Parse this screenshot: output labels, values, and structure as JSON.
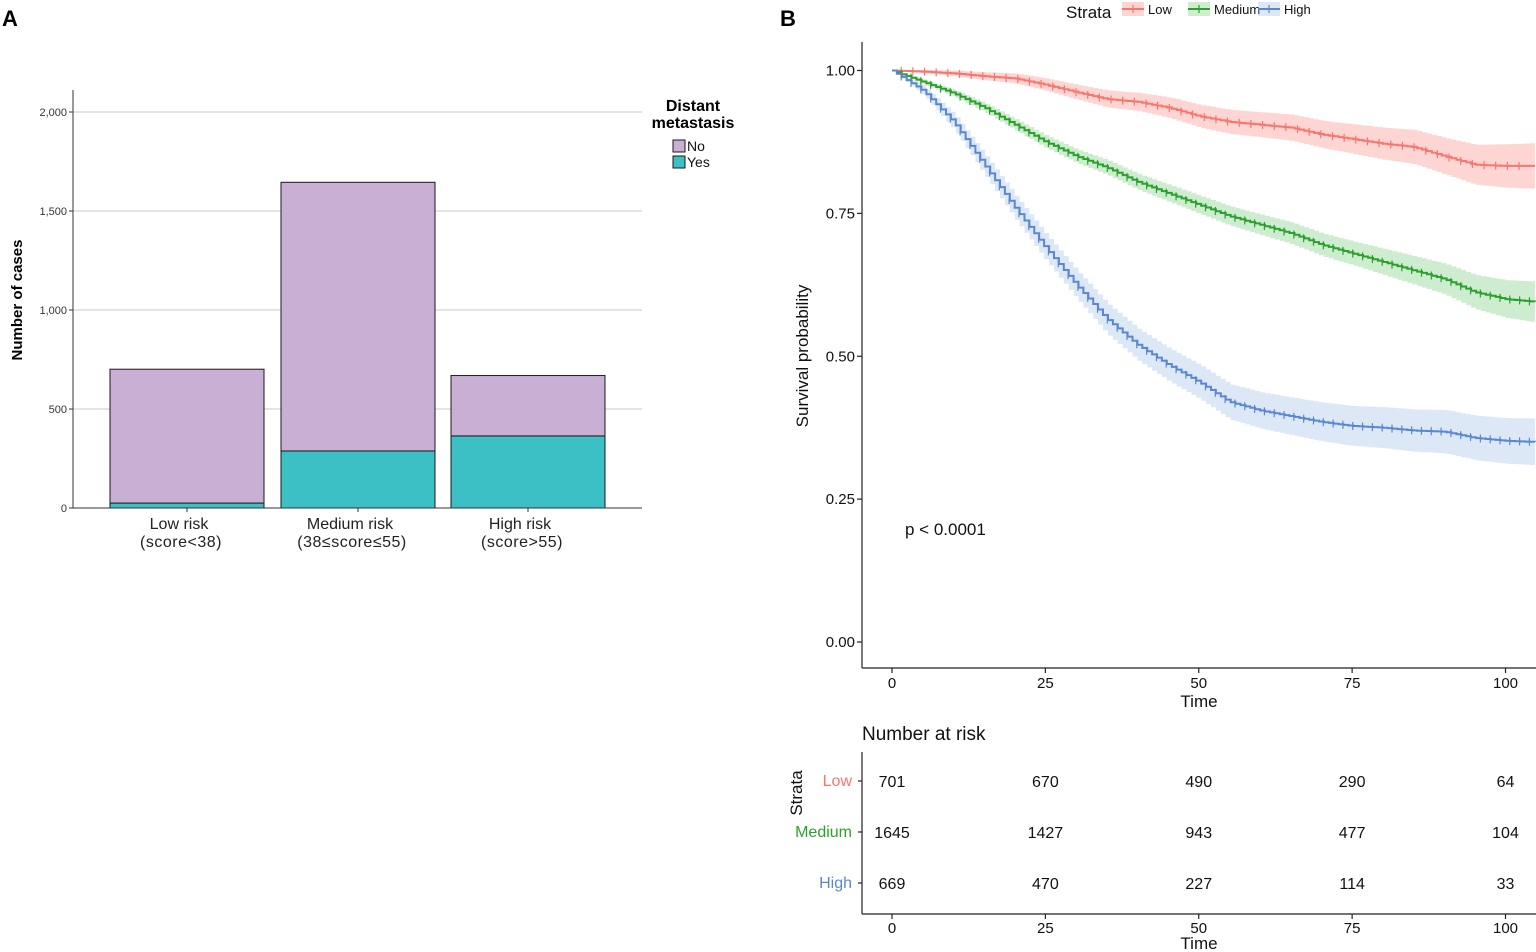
{
  "panel_a": {
    "label": "A",
    "ylabel": "Number of cases",
    "legend": {
      "title_line1": "Distant",
      "title_line2": "metastasis"
    }
  },
  "panel_b": {
    "label": "B",
    "ylabel": "Survival probability",
    "xlabel": "Time",
    "legend_title": "Strata",
    "p_value": "p < 0.0001",
    "risk_table": {
      "title": "Number at risk",
      "ylabel": "Strata",
      "xlabel": "Time"
    }
  },
  "chart_data": [
    {
      "type": "bar",
      "stacked": true,
      "title": "",
      "xlabel": "",
      "ylabel": "Number of cases",
      "ylim": [
        0,
        2200
      ],
      "yticks": [
        0,
        500,
        1000,
        1500,
        2000
      ],
      "ytick_labels": [
        "0",
        "500",
        "1,000",
        "1,500",
        "2,000"
      ],
      "categories": [
        [
          "Low risk",
          "(score<38)"
        ],
        [
          "Medium risk",
          "(38≤score≤55)"
        ],
        [
          "High risk",
          "(score>55)"
        ]
      ],
      "legend_title": "Distant metastasis",
      "series": [
        {
          "name": "Yes",
          "color": "#3CBFC5",
          "values": [
            25,
            288,
            364
          ]
        },
        {
          "name": "No",
          "color": "#CAAFD4",
          "values": [
            676,
            1357,
            305
          ]
        }
      ],
      "grid": true,
      "legend_position": "right"
    },
    {
      "type": "line",
      "subtype": "kaplan-meier",
      "title": "",
      "xlabel": "Time",
      "ylabel": "Survival probability",
      "xlim": [
        -7,
        105
      ],
      "ylim": [
        -0.05,
        1.05
      ],
      "xticks": [
        0,
        25,
        50,
        75,
        100
      ],
      "yticks": [
        0,
        0.25,
        0.5,
        0.75,
        1.0
      ],
      "ytick_labels": [
        "0.00",
        "0.25",
        "0.50",
        "0.75",
        "1.00"
      ],
      "legend_title": "Strata",
      "legend_position": "top",
      "series": [
        {
          "name": "Low",
          "color": "#F8766D",
          "band_color": "#F8766D",
          "x": [
            0,
            5,
            10,
            15,
            20,
            25,
            30,
            35,
            40,
            45,
            50,
            55,
            60,
            65,
            70,
            75,
            80,
            85,
            90,
            95,
            100,
            105
          ],
          "y": [
            1.0,
            0.998,
            0.995,
            0.99,
            0.986,
            0.975,
            0.962,
            0.95,
            0.945,
            0.935,
            0.92,
            0.91,
            0.905,
            0.9,
            0.888,
            0.88,
            0.872,
            0.866,
            0.85,
            0.835,
            0.833,
            0.833
          ],
          "ci_width": [
            0,
            0.003,
            0.005,
            0.007,
            0.009,
            0.011,
            0.013,
            0.015,
            0.016,
            0.018,
            0.02,
            0.021,
            0.022,
            0.023,
            0.024,
            0.026,
            0.028,
            0.03,
            0.032,
            0.035,
            0.038,
            0.04
          ]
        },
        {
          "name": "Medium",
          "color": "#2CA02C",
          "band_color": "#5CBF60",
          "x": [
            0,
            5,
            10,
            15,
            20,
            25,
            30,
            35,
            40,
            45,
            50,
            55,
            60,
            65,
            70,
            75,
            80,
            85,
            90,
            95,
            100,
            105
          ],
          "y": [
            1.0,
            0.98,
            0.96,
            0.935,
            0.905,
            0.875,
            0.85,
            0.83,
            0.805,
            0.785,
            0.765,
            0.745,
            0.73,
            0.715,
            0.695,
            0.68,
            0.665,
            0.65,
            0.635,
            0.612,
            0.6,
            0.595
          ],
          "ci_width": [
            0,
            0.004,
            0.006,
            0.008,
            0.01,
            0.011,
            0.012,
            0.013,
            0.014,
            0.015,
            0.016,
            0.017,
            0.018,
            0.019,
            0.02,
            0.021,
            0.023,
            0.025,
            0.027,
            0.03,
            0.033,
            0.036
          ]
        },
        {
          "name": "High",
          "color": "#5B87D0",
          "band_color": "#8EB4E6",
          "x": [
            0,
            5,
            10,
            15,
            20,
            25,
            30,
            35,
            40,
            45,
            50,
            55,
            60,
            65,
            70,
            75,
            80,
            85,
            90,
            95,
            100,
            105
          ],
          "y": [
            1.0,
            0.965,
            0.91,
            0.835,
            0.76,
            0.69,
            0.625,
            0.565,
            0.52,
            0.485,
            0.455,
            0.42,
            0.405,
            0.395,
            0.385,
            0.378,
            0.375,
            0.37,
            0.368,
            0.357,
            0.352,
            0.35
          ],
          "ci_width": [
            0,
            0.008,
            0.014,
            0.018,
            0.021,
            0.023,
            0.025,
            0.027,
            0.028,
            0.029,
            0.03,
            0.031,
            0.032,
            0.033,
            0.034,
            0.035,
            0.036,
            0.037,
            0.038,
            0.039,
            0.04,
            0.041
          ]
        }
      ],
      "annotations": [
        "p < 0.0001"
      ]
    },
    {
      "type": "table",
      "title": "Number at risk",
      "xlabel": "Time",
      "ylabel": "Strata",
      "columns": [
        0,
        25,
        50,
        75,
        100
      ],
      "rows": [
        {
          "name": "Low",
          "color": "#F8766D",
          "values": [
            701,
            670,
            490,
            290,
            64
          ]
        },
        {
          "name": "Medium",
          "color": "#2CA02C",
          "values": [
            1645,
            1427,
            943,
            477,
            104
          ]
        },
        {
          "name": "High",
          "color": "#5B87D0",
          "values": [
            669,
            470,
            227,
            114,
            33
          ]
        }
      ]
    }
  ]
}
